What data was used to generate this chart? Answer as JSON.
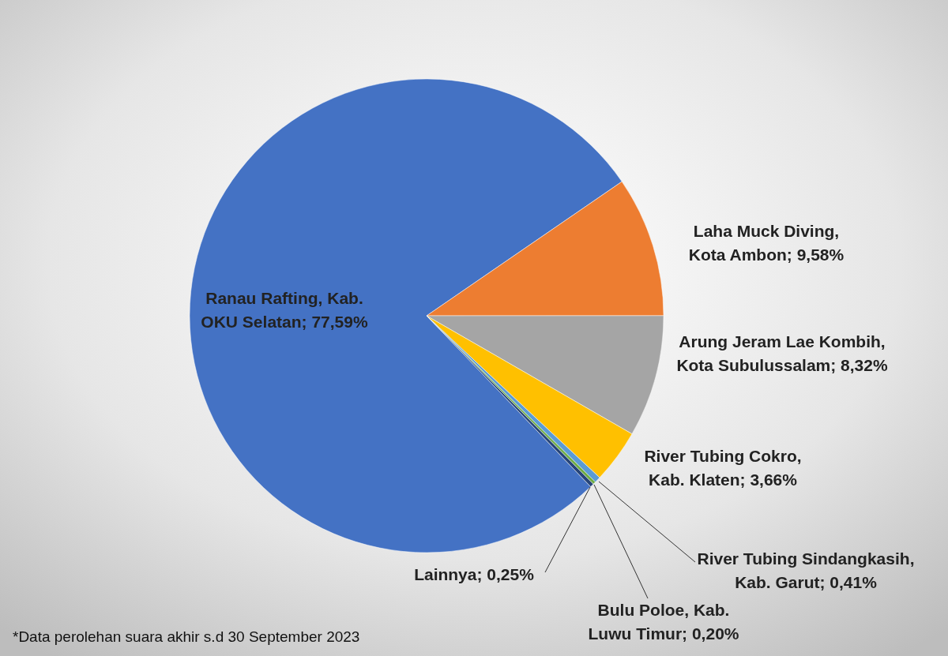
{
  "chart_data": {
    "type": "pie",
    "categories": [
      "Ranau Rafting, Kab. OKU Selatan",
      "Laha Muck Diving, Kota Ambon",
      "Arung Jeram Lae Kombih, Kota Subulussalam",
      "River Tubing Cokro, Kab. Klaten",
      "River Tubing Sindangkasih, Kab. Garut",
      "Bulu Poloe, Kab. Luwu Timur",
      "Lainnya"
    ],
    "values": [
      77.59,
      9.58,
      8.32,
      3.66,
      0.41,
      0.2,
      0.25
    ],
    "value_labels": [
      "77,59%",
      "9,58%",
      "8,32%",
      "3,66%",
      "0,41%",
      "0,20%",
      "0,25%"
    ],
    "colors": [
      "#4472c4",
      "#ed7d31",
      "#a5a5a5",
      "#ffc000",
      "#5b9bd5",
      "#70ad47",
      "#264478"
    ],
    "annotations": [
      "*Data perolehan suara akhir s.d 30 September 2023"
    ]
  }
}
